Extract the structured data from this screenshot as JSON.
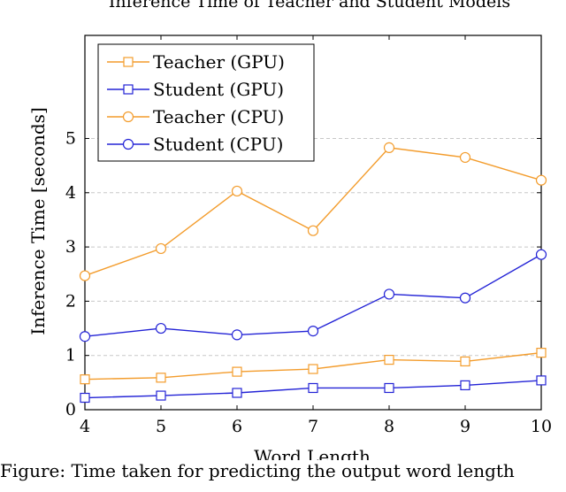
{
  "chart_data": {
    "type": "line",
    "title": "Inference Time of Teacher and Student Models",
    "xlabel": "Word Length",
    "ylabel": "Inference Time [seconds]",
    "x": [
      4,
      5,
      6,
      7,
      8,
      9,
      10
    ],
    "xticks": [
      "4",
      "5",
      "6",
      "7",
      "8",
      "9",
      "10"
    ],
    "yticks": [
      "0",
      "1",
      "2",
      "3",
      "4",
      "5"
    ],
    "xlim": [
      4,
      10
    ],
    "ylim": [
      0,
      6.9
    ],
    "grid": "horizontal dashed",
    "legend_position": "top-left",
    "series": [
      {
        "name": "Teacher (GPU)",
        "marker": "square",
        "color": "#f39c2c",
        "values": [
          0.56,
          0.59,
          0.7,
          0.75,
          0.92,
          0.89,
          1.05
        ]
      },
      {
        "name": "Student (GPU)",
        "marker": "square",
        "color": "#2323d6",
        "values": [
          0.22,
          0.26,
          0.31,
          0.4,
          0.4,
          0.45,
          0.54
        ]
      },
      {
        "name": "Teacher (CPU)",
        "marker": "circle",
        "color": "#f39c2c",
        "values": [
          2.47,
          2.97,
          4.03,
          3.3,
          4.83,
          4.65,
          4.23
        ]
      },
      {
        "name": "Student (CPU)",
        "marker": "circle",
        "color": "#2323d6",
        "values": [
          1.35,
          1.5,
          1.38,
          1.45,
          2.13,
          2.06,
          2.86
        ]
      }
    ]
  },
  "caption": "Figure: Time taken for predicting the output word length"
}
